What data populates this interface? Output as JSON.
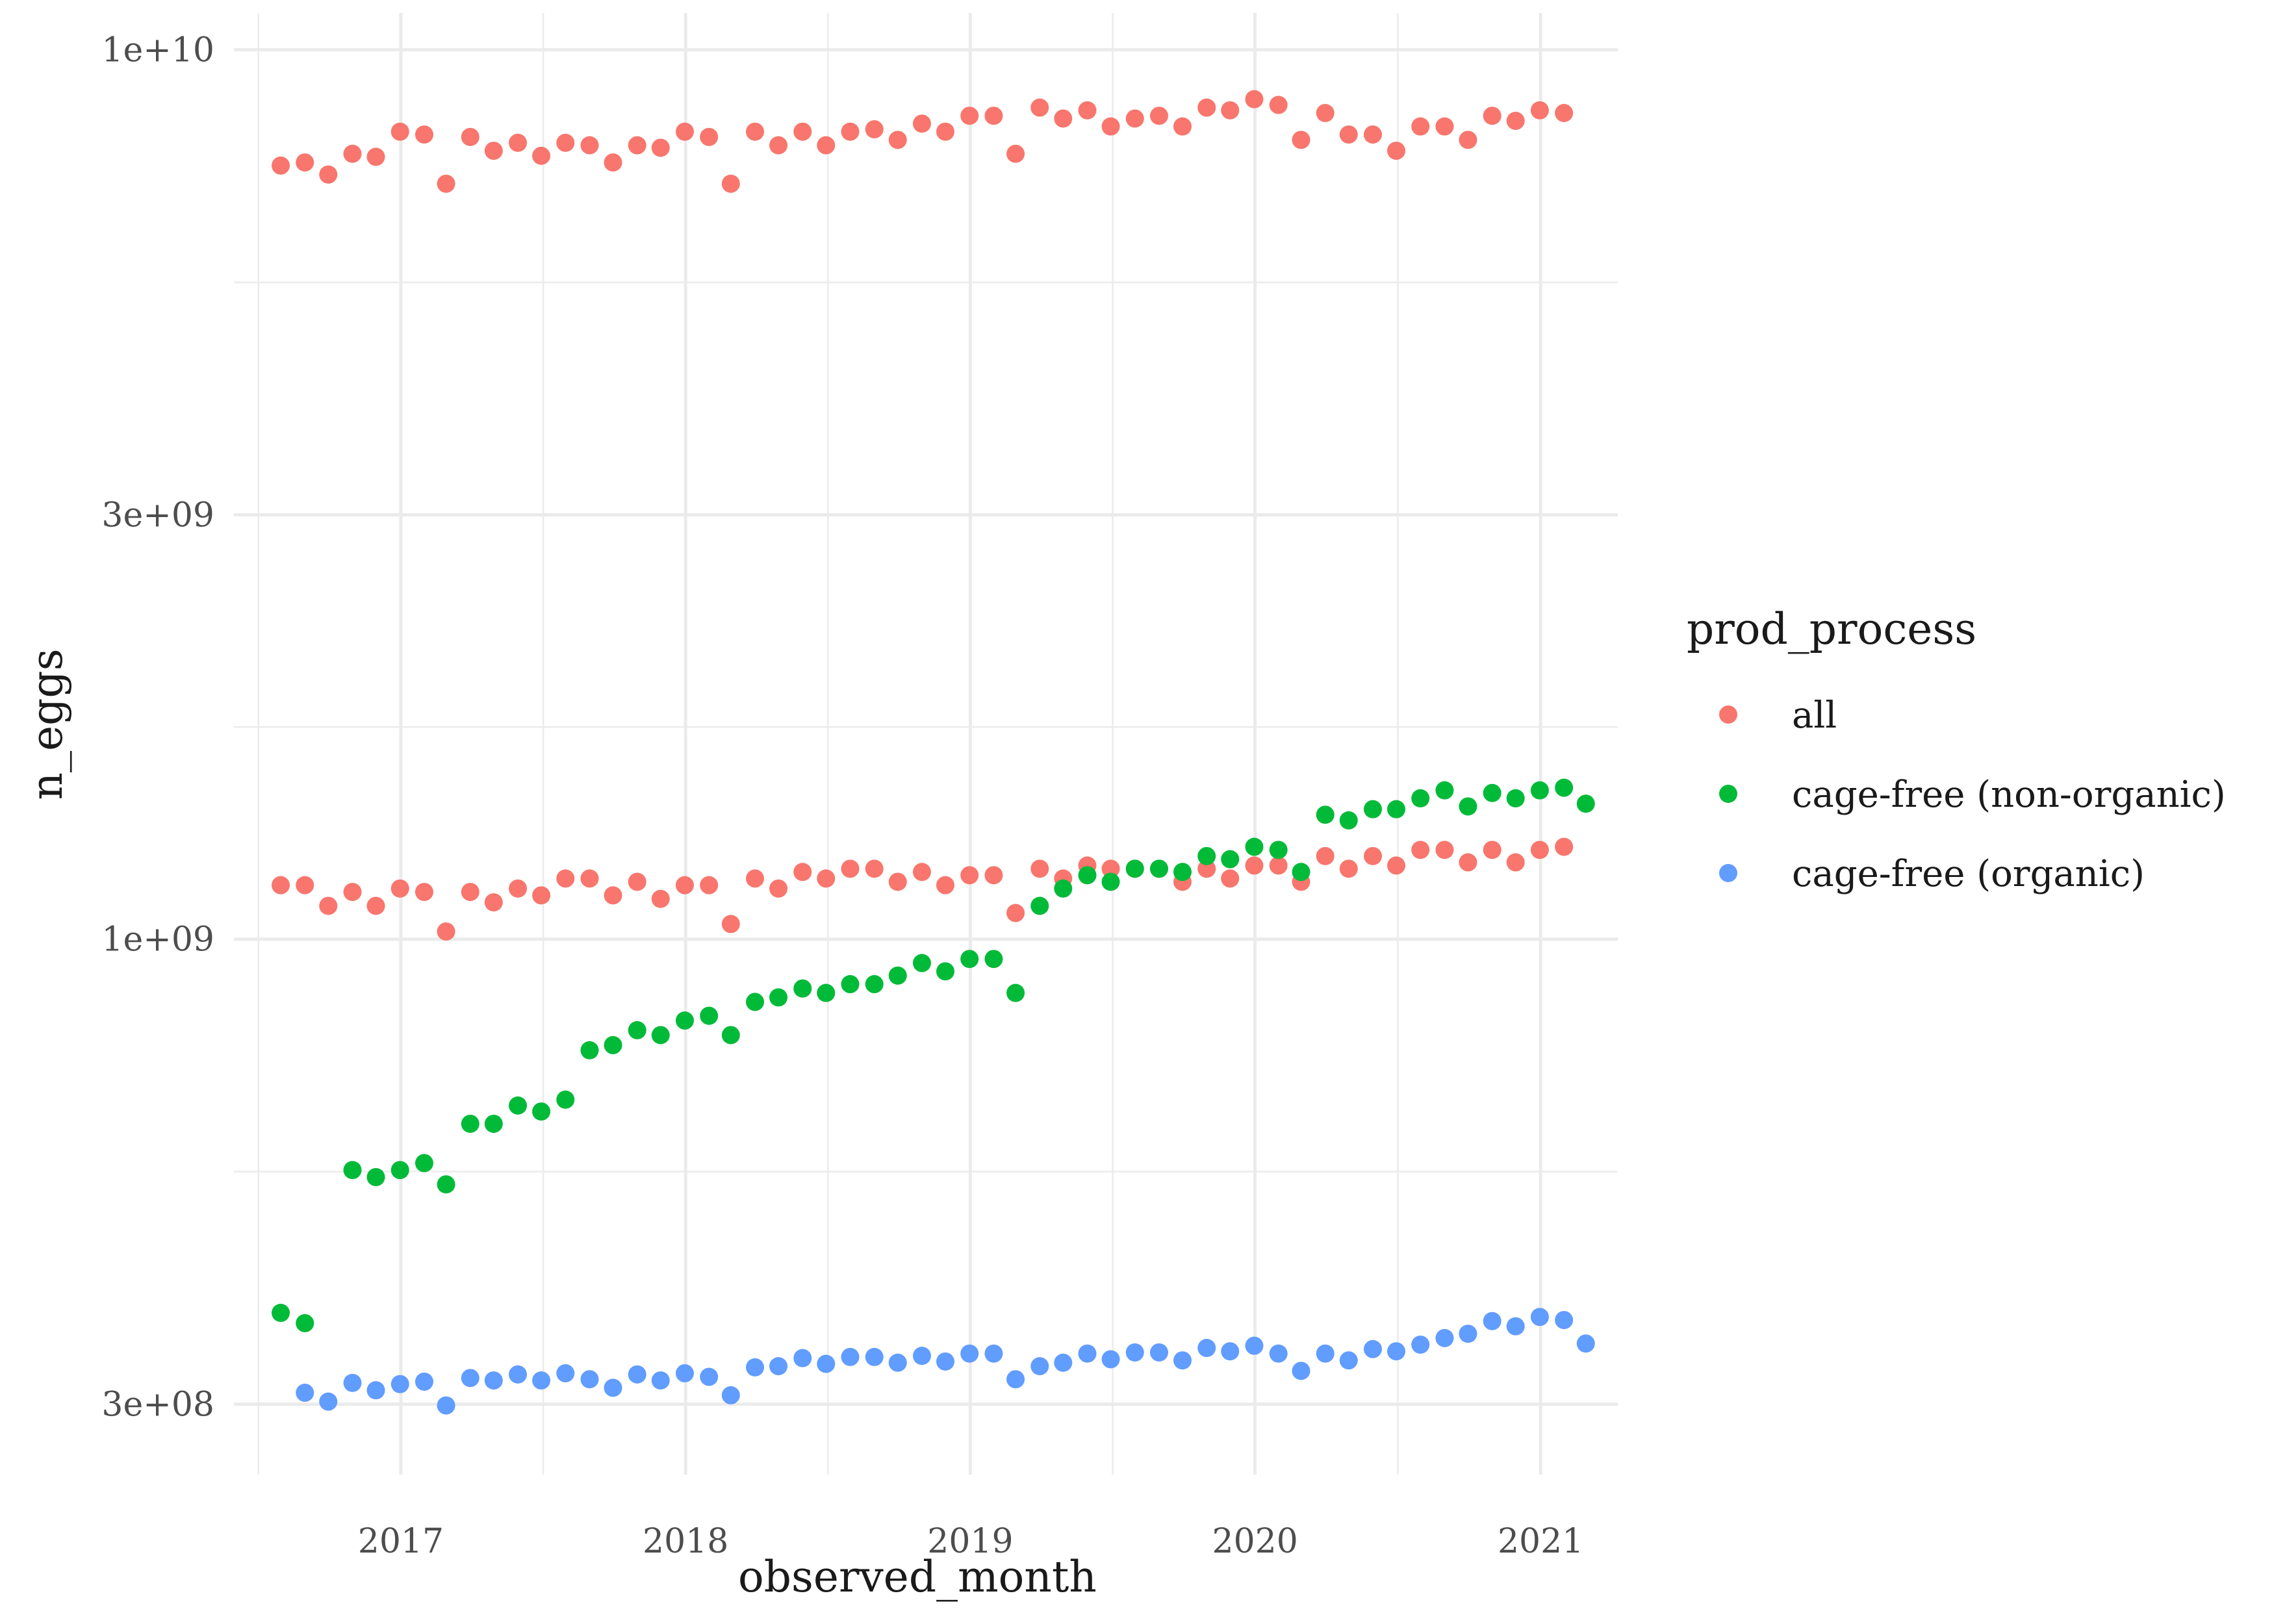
{
  "chart_data": {
    "type": "scatter",
    "xlabel": "observed_month",
    "ylabel": "n_eggs",
    "y_scale": "log10",
    "ylim": [
      250000000,
      11000000000
    ],
    "xlim": [
      "2016-06-01",
      "2021-04-10"
    ],
    "grid": true,
    "x_ticks": [
      {
        "value": "2017-01-01",
        "label": "2017"
      },
      {
        "value": "2018-01-01",
        "label": "2018"
      },
      {
        "value": "2019-01-01",
        "label": "2019"
      },
      {
        "value": "2020-01-01",
        "label": "2020"
      },
      {
        "value": "2021-01-01",
        "label": "2021"
      }
    ],
    "y_ticks": [
      {
        "value": 300000000,
        "label": "3e+08"
      },
      {
        "value": 1000000000,
        "label": "1e+09"
      },
      {
        "value": 3000000000,
        "label": "3e+09"
      },
      {
        "value": 10000000000,
        "label": "1e+10"
      }
    ],
    "legend": {
      "title": "prod_process",
      "position": "right",
      "entries": [
        {
          "label": "all",
          "color": "#F8766D"
        },
        {
          "label": "cage-free (non-organic)",
          "color": "#00BA38"
        },
        {
          "label": "cage-free (organic)",
          "color": "#619CFF"
        }
      ]
    },
    "series": [
      {
        "name": "all",
        "color": "#F8766D",
        "points": [
          [
            "2016-07-31",
            7410000000
          ],
          [
            "2016-08-31",
            7470000000
          ],
          [
            "2016-09-30",
            7240000000
          ],
          [
            "2016-10-31",
            7640000000
          ],
          [
            "2016-11-30",
            7580000000
          ],
          [
            "2016-12-31",
            8090000000
          ],
          [
            "2017-01-31",
            8030000000
          ],
          [
            "2017-02-28",
            7070000000
          ],
          [
            "2017-03-31",
            7980000000
          ],
          [
            "2017-04-30",
            7700000000
          ],
          [
            "2017-05-31",
            7860000000
          ],
          [
            "2017-06-30",
            7600000000
          ],
          [
            "2017-07-31",
            7860000000
          ],
          [
            "2017-08-31",
            7810000000
          ],
          [
            "2017-09-30",
            7470000000
          ],
          [
            "2017-10-31",
            7810000000
          ],
          [
            "2017-11-30",
            7760000000
          ],
          [
            "2017-12-31",
            8090000000
          ],
          [
            "2018-01-31",
            7980000000
          ],
          [
            "2018-02-28",
            7070000000
          ],
          [
            "2018-03-31",
            8090000000
          ],
          [
            "2018-04-30",
            7810000000
          ],
          [
            "2018-05-31",
            8090000000
          ],
          [
            "2018-06-30",
            7810000000
          ],
          [
            "2018-07-31",
            8090000000
          ],
          [
            "2018-08-31",
            8140000000
          ],
          [
            "2018-09-30",
            7920000000
          ],
          [
            "2018-10-31",
            8260000000
          ],
          [
            "2018-11-30",
            8090000000
          ],
          [
            "2018-12-31",
            8430000000
          ],
          [
            "2019-01-31",
            8430000000
          ],
          [
            "2019-02-28",
            7640000000
          ],
          [
            "2019-03-31",
            8610000000
          ],
          [
            "2019-04-30",
            8370000000
          ],
          [
            "2019-05-31",
            8550000000
          ],
          [
            "2019-06-30",
            8200000000
          ],
          [
            "2019-07-31",
            8370000000
          ],
          [
            "2019-08-31",
            8430000000
          ],
          [
            "2019-09-30",
            8200000000
          ],
          [
            "2019-10-31",
            8610000000
          ],
          [
            "2019-11-30",
            8550000000
          ],
          [
            "2019-12-31",
            8800000000
          ],
          [
            "2020-01-31",
            8670000000
          ],
          [
            "2020-02-29",
            7920000000
          ],
          [
            "2020-03-31",
            8490000000
          ],
          [
            "2020-04-30",
            8030000000
          ],
          [
            "2020-05-31",
            8030000000
          ],
          [
            "2020-06-30",
            7700000000
          ],
          [
            "2020-07-31",
            8200000000
          ],
          [
            "2020-08-31",
            8200000000
          ],
          [
            "2020-09-30",
            7920000000
          ],
          [
            "2020-10-31",
            8430000000
          ],
          [
            "2020-11-30",
            8320000000
          ],
          [
            "2020-12-31",
            8550000000
          ],
          [
            "2021-01-31",
            8490000000
          ]
        ]
      },
      {
        "name": "all",
        "color": "#F8766D",
        "points": [
          [
            "2016-07-31",
            1150000000
          ],
          [
            "2016-08-31",
            1150000000
          ],
          [
            "2016-09-30",
            1090000000
          ],
          [
            "2016-10-31",
            1130000000
          ],
          [
            "2016-11-30",
            1090000000
          ],
          [
            "2016-12-31",
            1140000000
          ],
          [
            "2017-01-31",
            1130000000
          ],
          [
            "2017-02-28",
            1020000000
          ],
          [
            "2017-03-31",
            1130000000
          ],
          [
            "2017-04-30",
            1100000000
          ],
          [
            "2017-05-31",
            1140000000
          ],
          [
            "2017-06-30",
            1120000000
          ],
          [
            "2017-07-31",
            1170000000
          ],
          [
            "2017-08-31",
            1170000000
          ],
          [
            "2017-09-30",
            1120000000
          ],
          [
            "2017-10-31",
            1160000000
          ],
          [
            "2017-11-30",
            1110000000
          ],
          [
            "2017-12-31",
            1150000000
          ],
          [
            "2018-01-31",
            1150000000
          ],
          [
            "2018-02-28",
            1040000000
          ],
          [
            "2018-03-31",
            1170000000
          ],
          [
            "2018-04-30",
            1140000000
          ],
          [
            "2018-05-31",
            1190000000
          ],
          [
            "2018-06-30",
            1170000000
          ],
          [
            "2018-07-31",
            1200000000
          ],
          [
            "2018-08-31",
            1200000000
          ],
          [
            "2018-09-30",
            1160000000
          ],
          [
            "2018-10-31",
            1190000000
          ],
          [
            "2018-11-30",
            1150000000
          ],
          [
            "2018-12-31",
            1180000000
          ],
          [
            "2019-01-31",
            1180000000
          ],
          [
            "2019-02-28",
            1070000000
          ],
          [
            "2019-03-31",
            1200000000
          ],
          [
            "2019-04-30",
            1170000000
          ],
          [
            "2019-05-31",
            1210000000
          ],
          [
            "2019-06-30",
            1200000000
          ],
          [
            "2019-07-31",
            1200000000
          ],
          [
            "2019-08-31",
            1200000000
          ],
          [
            "2019-09-30",
            1160000000
          ],
          [
            "2019-10-31",
            1200000000
          ],
          [
            "2019-11-30",
            1170000000
          ],
          [
            "2019-12-31",
            1210000000
          ],
          [
            "2020-01-31",
            1210000000
          ],
          [
            "2020-02-29",
            1160000000
          ],
          [
            "2020-03-31",
            1240000000
          ],
          [
            "2020-04-30",
            1200000000
          ],
          [
            "2020-05-31",
            1240000000
          ],
          [
            "2020-06-30",
            1210000000
          ],
          [
            "2020-07-31",
            1260000000
          ],
          [
            "2020-08-31",
            1260000000
          ],
          [
            "2020-09-30",
            1220000000
          ],
          [
            "2020-10-31",
            1260000000
          ],
          [
            "2020-11-30",
            1220000000
          ],
          [
            "2020-12-31",
            1260000000
          ],
          [
            "2021-01-31",
            1270000000
          ]
        ]
      },
      {
        "name": "cage-free (non-organic)",
        "color": "#00BA38",
        "points": [
          [
            "2016-07-31",
            380000000
          ],
          [
            "2016-08-31",
            370000000
          ],
          [
            "2016-10-31",
            550000000
          ],
          [
            "2016-11-30",
            540000000
          ],
          [
            "2016-12-31",
            550000000
          ],
          [
            "2017-01-31",
            560000000
          ],
          [
            "2017-02-28",
            530000000
          ],
          [
            "2017-03-31",
            620000000
          ],
          [
            "2017-04-30",
            620000000
          ],
          [
            "2017-05-31",
            650000000
          ],
          [
            "2017-06-30",
            640000000
          ],
          [
            "2017-07-31",
            660000000
          ],
          [
            "2017-08-31",
            750000000
          ],
          [
            "2017-09-30",
            760000000
          ],
          [
            "2017-10-31",
            790000000
          ],
          [
            "2017-11-30",
            780000000
          ],
          [
            "2017-12-31",
            810000000
          ],
          [
            "2018-01-31",
            820000000
          ],
          [
            "2018-02-28",
            780000000
          ],
          [
            "2018-03-31",
            850000000
          ],
          [
            "2018-04-30",
            860000000
          ],
          [
            "2018-05-31",
            880000000
          ],
          [
            "2018-06-30",
            870000000
          ],
          [
            "2018-07-31",
            890000000
          ],
          [
            "2018-08-31",
            890000000
          ],
          [
            "2018-09-30",
            910000000
          ],
          [
            "2018-10-31",
            940000000
          ],
          [
            "2018-11-30",
            920000000
          ],
          [
            "2018-12-31",
            950000000
          ],
          [
            "2019-01-31",
            950000000
          ],
          [
            "2019-02-28",
            870000000
          ],
          [
            "2019-03-31",
            1090000000
          ],
          [
            "2019-04-30",
            1140000000
          ],
          [
            "2019-05-31",
            1180000000
          ],
          [
            "2019-06-30",
            1160000000
          ],
          [
            "2019-07-31",
            1200000000
          ],
          [
            "2019-08-31",
            1200000000
          ],
          [
            "2019-09-30",
            1190000000
          ],
          [
            "2019-10-31",
            1240000000
          ],
          [
            "2019-11-30",
            1230000000
          ],
          [
            "2019-12-31",
            1270000000
          ],
          [
            "2020-01-31",
            1260000000
          ],
          [
            "2020-02-29",
            1190000000
          ],
          [
            "2020-03-31",
            1380000000
          ],
          [
            "2020-04-30",
            1360000000
          ],
          [
            "2020-05-31",
            1400000000
          ],
          [
            "2020-06-30",
            1400000000
          ],
          [
            "2020-07-31",
            1440000000
          ],
          [
            "2020-08-31",
            1470000000
          ],
          [
            "2020-09-30",
            1410000000
          ],
          [
            "2020-10-31",
            1460000000
          ],
          [
            "2020-11-30",
            1440000000
          ],
          [
            "2020-12-31",
            1470000000
          ],
          [
            "2021-01-31",
            1480000000
          ],
          [
            "2021-02-28",
            1420000000
          ]
        ]
      },
      {
        "name": "cage-free (organic)",
        "color": "#619CFF",
        "points": [
          [
            "2016-08-31",
            309000000
          ],
          [
            "2016-09-30",
            302000000
          ],
          [
            "2016-10-31",
            317000000
          ],
          [
            "2016-11-30",
            311000000
          ],
          [
            "2016-12-31",
            316000000
          ],
          [
            "2017-01-31",
            318000000
          ],
          [
            "2017-02-28",
            299000000
          ],
          [
            "2017-03-31",
            321000000
          ],
          [
            "2017-04-30",
            319000000
          ],
          [
            "2017-05-31",
            324000000
          ],
          [
            "2017-06-30",
            319000000
          ],
          [
            "2017-07-31",
            325000000
          ],
          [
            "2017-08-31",
            320000000
          ],
          [
            "2017-09-30",
            313000000
          ],
          [
            "2017-10-31",
            324000000
          ],
          [
            "2017-11-30",
            319000000
          ],
          [
            "2017-12-31",
            325000000
          ],
          [
            "2018-01-31",
            322000000
          ],
          [
            "2018-02-28",
            307000000
          ],
          [
            "2018-03-31",
            330000000
          ],
          [
            "2018-04-30",
            331000000
          ],
          [
            "2018-05-31",
            338000000
          ],
          [
            "2018-06-30",
            333000000
          ],
          [
            "2018-07-31",
            339000000
          ],
          [
            "2018-08-31",
            339000000
          ],
          [
            "2018-09-30",
            334000000
          ],
          [
            "2018-10-31",
            340000000
          ],
          [
            "2018-11-30",
            335000000
          ],
          [
            "2018-12-31",
            342000000
          ],
          [
            "2019-01-31",
            342000000
          ],
          [
            "2019-02-28",
            320000000
          ],
          [
            "2019-03-31",
            331000000
          ],
          [
            "2019-04-30",
            334000000
          ],
          [
            "2019-05-31",
            342000000
          ],
          [
            "2019-06-30",
            337000000
          ],
          [
            "2019-07-31",
            343000000
          ],
          [
            "2019-08-31",
            343000000
          ],
          [
            "2019-09-30",
            336000000
          ],
          [
            "2019-10-31",
            347000000
          ],
          [
            "2019-11-30",
            344000000
          ],
          [
            "2019-12-31",
            349000000
          ],
          [
            "2020-01-31",
            342000000
          ],
          [
            "2020-02-29",
            327000000
          ],
          [
            "2020-03-31",
            342000000
          ],
          [
            "2020-04-30",
            336000000
          ],
          [
            "2020-05-31",
            346000000
          ],
          [
            "2020-06-30",
            344000000
          ],
          [
            "2020-07-31",
            350000000
          ],
          [
            "2020-08-31",
            356000000
          ],
          [
            "2020-09-30",
            360000000
          ],
          [
            "2020-10-31",
            372000000
          ],
          [
            "2020-11-30",
            367000000
          ],
          [
            "2020-12-31",
            376000000
          ],
          [
            "2021-01-31",
            373000000
          ],
          [
            "2021-02-28",
            351000000
          ]
        ]
      }
    ]
  }
}
